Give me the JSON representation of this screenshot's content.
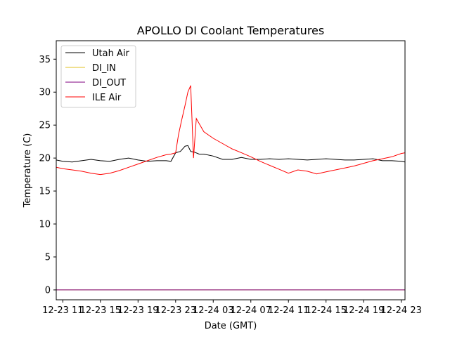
{
  "chart_data": {
    "type": "line",
    "title": "APOLLO DI Coolant Temperatures",
    "xlabel": "Date (GMT)",
    "ylabel": "Temperature (C)",
    "xlim": [
      10.3,
      47.4
    ],
    "ylim": [
      -1.5,
      37.8
    ],
    "grid": false,
    "legend_position": "top-left",
    "x_ticks": [
      {
        "value": 11,
        "label": "12-23 11"
      },
      {
        "value": 15,
        "label": "12-23 15"
      },
      {
        "value": 19,
        "label": "12-23 19"
      },
      {
        "value": 23,
        "label": "12-23 23"
      },
      {
        "value": 27,
        "label": "12-24 03"
      },
      {
        "value": 31,
        "label": "12-24 07"
      },
      {
        "value": 35,
        "label": "12-24 11"
      },
      {
        "value": 39,
        "label": "12-24 15"
      },
      {
        "value": 43,
        "label": "12-24 19"
      },
      {
        "value": 47,
        "label": "12-24 23"
      }
    ],
    "y_ticks": [
      0,
      5,
      10,
      15,
      20,
      25,
      30,
      35
    ],
    "series": [
      {
        "name": "Utah Air",
        "color": "#000000",
        "x": [
          10.3,
          11.0,
          12.0,
          13.0,
          14.0,
          15.0,
          16.0,
          17.0,
          18.0,
          19.0,
          20.0,
          21.0,
          22.0,
          22.5,
          23.0,
          23.5,
          24.0,
          24.3,
          24.6,
          25.0,
          25.5,
          26.0,
          27.0,
          28.0,
          29.0,
          30.0,
          31.0,
          32.0,
          33.0,
          34.0,
          35.0,
          36.0,
          37.0,
          38.0,
          39.0,
          40.0,
          41.0,
          42.0,
          43.0,
          44.0,
          45.0,
          46.0,
          47.0,
          47.4
        ],
        "values": [
          19.7,
          19.5,
          19.4,
          19.6,
          19.8,
          19.6,
          19.5,
          19.8,
          20.0,
          19.7,
          19.5,
          19.6,
          19.6,
          19.5,
          20.8,
          21.0,
          21.8,
          21.9,
          21.0,
          20.9,
          20.6,
          20.6,
          20.3,
          19.8,
          19.8,
          20.1,
          19.8,
          19.8,
          19.9,
          19.8,
          19.9,
          19.8,
          19.7,
          19.8,
          19.9,
          19.8,
          19.7,
          19.7,
          19.8,
          19.9,
          19.6,
          19.6,
          19.5,
          19.4
        ]
      },
      {
        "name": "DI_IN",
        "color": "#e0c020",
        "x": [
          10.3,
          47.4
        ],
        "values": [
          0.0,
          0.0
        ]
      },
      {
        "name": "DI_OUT",
        "color": "#800080",
        "x": [
          10.3,
          47.4
        ],
        "values": [
          0.0,
          0.0
        ]
      },
      {
        "name": "ILE Air",
        "color": "#ff0000",
        "x": [
          10.3,
          11.0,
          12.0,
          13.0,
          14.0,
          15.0,
          16.0,
          17.0,
          18.0,
          19.0,
          20.0,
          21.0,
          22.0,
          22.5,
          23.0,
          23.3,
          23.6,
          24.0,
          24.3,
          24.6,
          24.9,
          25.2,
          25.6,
          26.0,
          27.0,
          28.0,
          29.0,
          30.0,
          31.0,
          32.0,
          33.0,
          34.0,
          35.0,
          36.0,
          37.0,
          38.0,
          39.0,
          40.0,
          41.0,
          42.0,
          43.0,
          44.0,
          45.0,
          46.0,
          47.0,
          47.4
        ],
        "values": [
          18.6,
          18.4,
          18.2,
          18.0,
          17.7,
          17.5,
          17.7,
          18.1,
          18.6,
          19.1,
          19.6,
          20.1,
          20.5,
          20.6,
          20.8,
          23.5,
          25.5,
          28.0,
          30.0,
          31.0,
          20.0,
          26.0,
          25.0,
          24.0,
          23.0,
          22.2,
          21.4,
          20.8,
          20.2,
          19.5,
          18.9,
          18.3,
          17.7,
          18.2,
          18.0,
          17.6,
          17.9,
          18.2,
          18.5,
          18.8,
          19.2,
          19.6,
          19.9,
          20.2,
          20.7,
          20.8
        ]
      }
    ]
  }
}
